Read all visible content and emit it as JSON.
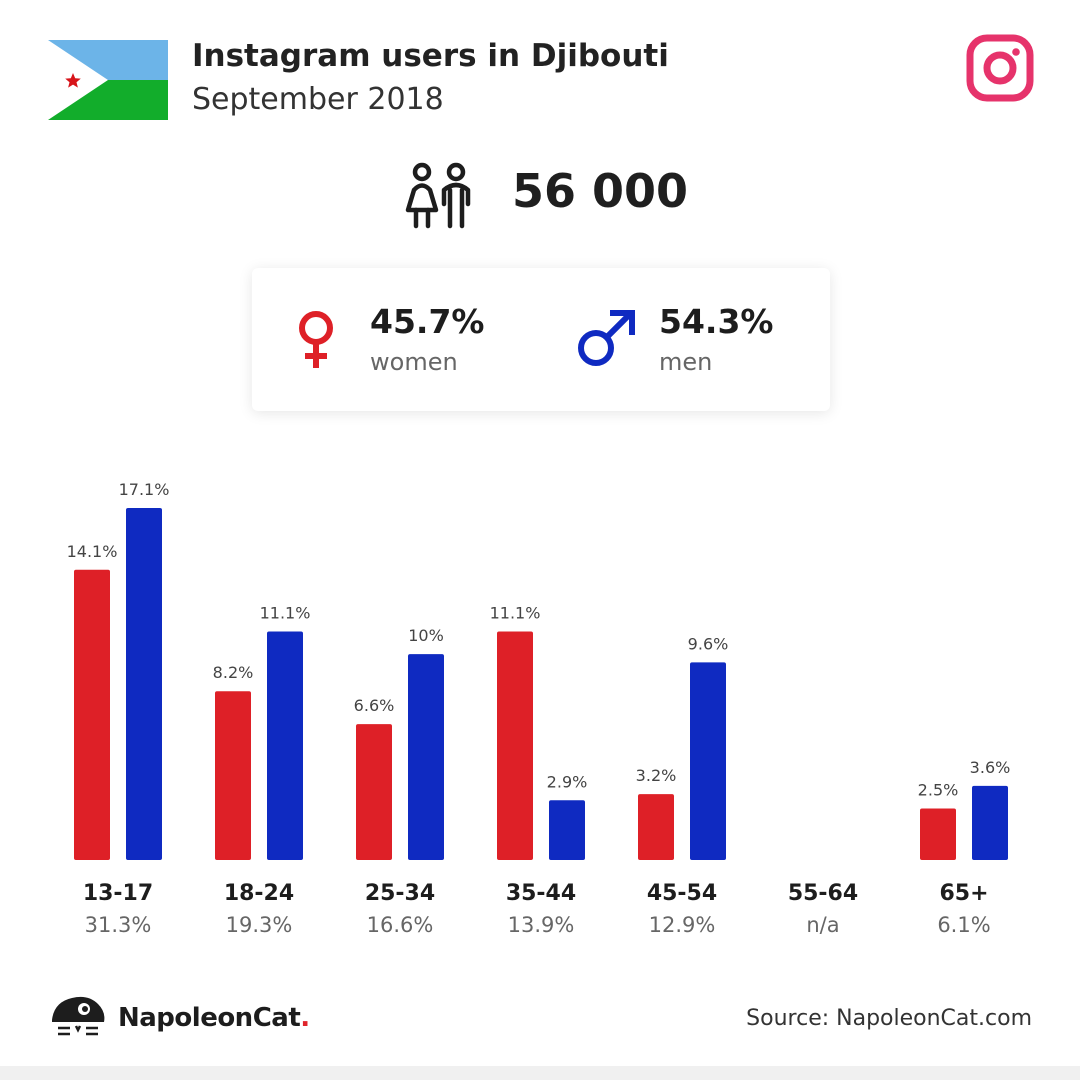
{
  "header": {
    "title": "Instagram users in Djibouti",
    "subtitle": "September 2018"
  },
  "icons": {
    "flag": "djibouti-flag",
    "platform": "instagram-icon",
    "users": "people-icon",
    "women": "female-symbol-icon",
    "men": "male-symbol-icon",
    "brand": "napoleoncat-logo-icon"
  },
  "colors": {
    "women": "#de2027",
    "men": "#0f2ac1",
    "instagram": "#e6336b"
  },
  "summary": {
    "total_users": "56 000",
    "women_pct": "45.7%",
    "women_label": "women",
    "men_pct": "54.3%",
    "men_label": "men"
  },
  "chart_data": {
    "type": "bar",
    "categories": [
      "13-17",
      "18-24",
      "25-34",
      "35-44",
      "45-54",
      "55-64",
      "65+"
    ],
    "category_totals": [
      "31.3%",
      "19.3%",
      "16.6%",
      "13.9%",
      "12.9%",
      "n/a",
      "6.1%"
    ],
    "series": [
      {
        "name": "women",
        "color": "#de2027",
        "values": [
          14.1,
          8.2,
          6.6,
          11.1,
          3.2,
          null,
          2.5
        ],
        "labels": [
          "14.1%",
          "8.2%",
          "6.6%",
          "11.1%",
          "3.2%",
          "",
          "2.5%"
        ]
      },
      {
        "name": "men",
        "color": "#0f2ac1",
        "values": [
          17.1,
          11.1,
          10,
          2.9,
          9.6,
          null,
          3.6
        ],
        "labels": [
          "17.1%",
          "11.1%",
          "10%",
          "2.9%",
          "9.6%",
          "",
          "3.6%"
        ]
      }
    ],
    "ylim": [
      0,
      17.1
    ],
    "grid": false
  },
  "footer": {
    "brand_name": "NapoleonCat",
    "brand_dot": ".",
    "source": "Source: NapoleonCat.com"
  }
}
